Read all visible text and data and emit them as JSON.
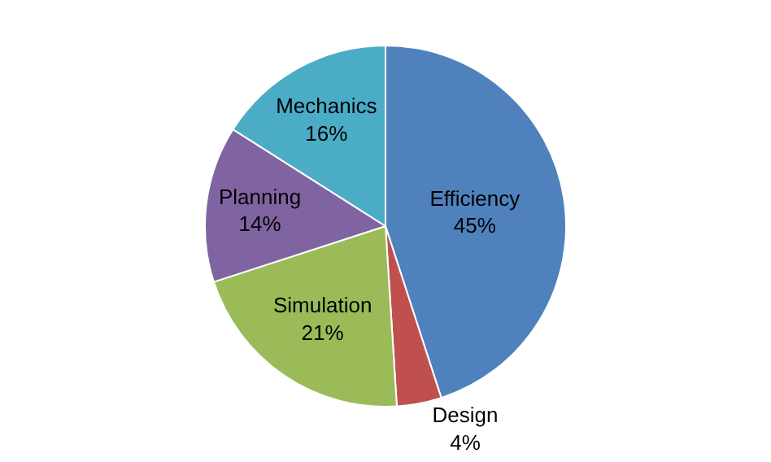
{
  "chart_data": {
    "type": "pie",
    "categories": [
      "Efficiency",
      "Design",
      "Simulation",
      "Planning",
      "Mechanics"
    ],
    "values": [
      45,
      4,
      21,
      14,
      16
    ],
    "value_labels": [
      "45%",
      "4%",
      "21%",
      "14%",
      "16%"
    ],
    "colors": [
      "#4f81bd",
      "#c0504d",
      "#9bbb59",
      "#8064a2",
      "#4bacc6"
    ],
    "legend": false
  }
}
